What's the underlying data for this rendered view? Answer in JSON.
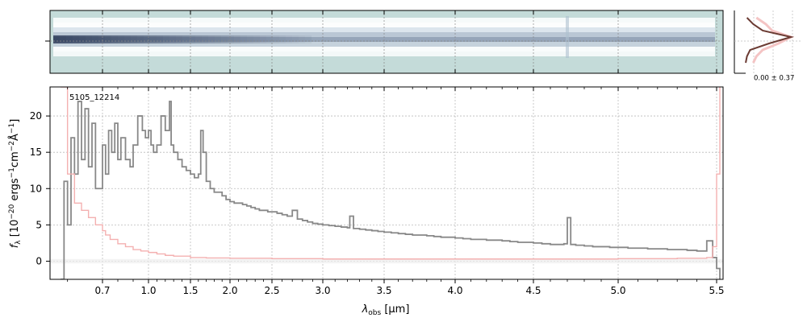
{
  "chart_data": [
    {
      "type": "heatmap",
      "panel": "2d-spectrum",
      "colormap": [
        "#c4dbd9",
        "#ffffff",
        "#1b2a4a"
      ],
      "note_values": "trace brightness along wavelength"
    },
    {
      "type": "line",
      "panel": "cross-dispersion-profile",
      "annotation": "0.00 ± 0.37",
      "series": [
        {
          "color": "#6b3b33",
          "x": [
            0.2,
            0.3,
            0.45,
            0.9,
            0.55,
            0.25,
            0.2,
            0.18
          ],
          "y": [
            0,
            1,
            2,
            3,
            4,
            5,
            6,
            7
          ]
        },
        {
          "color": "#f4c4c4",
          "x": [
            0.35,
            0.5,
            0.6,
            0.9,
            0.7,
            0.45,
            0.35,
            0.3
          ],
          "y": [
            0,
            1,
            2,
            3,
            4,
            5,
            6,
            7
          ]
        }
      ]
    },
    {
      "type": "line",
      "panel": "1d-spectrum",
      "label": "5105_12214",
      "xlabel_main": "λ",
      "xlabel_sub": "obs",
      "xlabel_unit": "[μm]",
      "ylabel": "f_λ [10^-20 ergs^-1cm^-2Å^-1]",
      "ylabel_parts": {
        "f": "f",
        "sub": "λ",
        "pre": " [10",
        "e1": "−20",
        "mid1": " ergs",
        "e2": "−1",
        "mid2": "cm",
        "e3": "−2",
        "mid3": "Å",
        "e4": "−1",
        "end": "]"
      },
      "xlim": [
        0.55,
        5.52
      ],
      "ylim": [
        -2.5,
        24
      ],
      "grid": true,
      "x_ticks": [
        0.7,
        1.0,
        1.5,
        2.0,
        2.5,
        3.0,
        3.5,
        4.0,
        4.5,
        5.0,
        5.5
      ],
      "x_tick_labels": [
        "0.7",
        "1.0",
        "1.5",
        "2.0",
        "2.5",
        "3.0",
        "3.5",
        "4.0",
        "4.5",
        "5.0",
        "5.5"
      ],
      "y_ticks": [
        0,
        5,
        10,
        15,
        20
      ],
      "y_tick_labels": [
        "0",
        "5",
        "10",
        "15",
        "20"
      ],
      "series": [
        {
          "color": "#888888",
          "x": [
            0.58,
            0.59,
            0.6,
            0.61,
            0.62,
            0.63,
            0.64,
            0.65,
            0.66,
            0.67,
            0.68,
            0.7,
            0.72,
            0.74,
            0.76,
            0.78,
            0.8,
            0.82,
            0.85,
            0.88,
            0.9,
            0.93,
            0.96,
            0.98,
            1.0,
            1.03,
            1.06,
            1.1,
            1.15,
            1.2,
            1.25,
            1.27,
            1.3,
            1.35,
            1.4,
            1.45,
            1.5,
            1.55,
            1.6,
            1.63,
            1.66,
            1.7,
            1.75,
            1.8,
            1.85,
            1.9,
            1.95,
            2.0,
            2.05,
            2.1,
            2.15,
            2.2,
            2.25,
            2.3,
            2.35,
            2.4,
            2.45,
            2.5,
            2.55,
            2.6,
            2.65,
            2.7,
            2.75,
            2.8,
            2.85,
            2.9,
            2.95,
            3.0,
            3.05,
            3.1,
            3.15,
            3.2,
            3.22,
            3.25,
            3.3,
            3.35,
            3.4,
            3.45,
            3.5,
            3.55,
            3.6,
            3.65,
            3.7,
            3.75,
            3.8,
            3.85,
            3.9,
            3.95,
            4.0,
            4.05,
            4.1,
            4.15,
            4.2,
            4.25,
            4.3,
            4.35,
            4.4,
            4.45,
            4.5,
            4.55,
            4.6,
            4.65,
            4.68,
            4.7,
            4.72,
            4.75,
            4.8,
            4.85,
            4.9,
            4.95,
            5.0,
            5.05,
            5.1,
            5.15,
            5.2,
            5.25,
            5.3,
            5.35,
            5.4,
            5.45,
            5.48,
            5.5,
            5.51
          ],
          "y": [
            -2.5,
            11,
            5,
            17,
            12,
            22,
            14,
            21,
            13,
            19,
            10,
            16,
            12,
            18,
            15,
            19,
            14,
            17,
            14,
            13,
            16,
            20,
            18,
            17,
            18,
            16,
            15,
            16,
            20,
            18,
            22,
            16,
            15,
            14,
            13,
            12.5,
            12,
            11.5,
            12,
            18,
            15,
            11,
            10,
            9.5,
            9.5,
            9,
            8.5,
            8.2,
            8,
            8,
            7.8,
            7.6,
            7.4,
            7.2,
            7,
            7,
            6.8,
            6.8,
            6.6,
            6.4,
            6.2,
            7,
            5.8,
            5.6,
            5.4,
            5.2,
            5.1,
            5,
            4.9,
            4.8,
            4.7,
            4.6,
            6.2,
            4.5,
            4.4,
            4.3,
            4.2,
            4.1,
            4,
            3.9,
            3.8,
            3.7,
            3.6,
            3.6,
            3.5,
            3.4,
            3.3,
            3.3,
            3.2,
            3.1,
            3,
            3,
            2.9,
            2.9,
            2.8,
            2.7,
            2.6,
            2.6,
            2.5,
            2.4,
            2.3,
            2.3,
            2.4,
            6,
            2.3,
            2.2,
            2.1,
            2,
            2,
            1.9,
            1.9,
            1.8,
            1.8,
            1.7,
            1.7,
            1.6,
            1.6,
            1.5,
            1.4,
            2.8,
            0.5,
            -1,
            -2.5
          ]
        },
        {
          "color": "#f4b0b0",
          "x": [
            0.58,
            0.6,
            0.62,
            0.64,
            0.66,
            0.68,
            0.7,
            0.72,
            0.75,
            0.8,
            0.85,
            0.9,
            0.95,
            1.0,
            1.1,
            1.2,
            1.3,
            1.5,
            1.7,
            2.0,
            2.5,
            3.0,
            3.5,
            4.0,
            4.5,
            5.0,
            5.3,
            5.45,
            5.48,
            5.5,
            5.51
          ],
          "y": [
            24,
            12,
            8,
            7,
            6,
            5,
            4.2,
            3.6,
            3,
            2.4,
            2,
            1.6,
            1.4,
            1.2,
            1,
            0.8,
            0.7,
            0.5,
            0.45,
            0.4,
            0.35,
            0.3,
            0.3,
            0.3,
            0.3,
            0.35,
            0.4,
            0.5,
            2,
            12,
            24
          ]
        }
      ]
    }
  ]
}
